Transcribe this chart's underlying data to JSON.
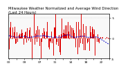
{
  "title": "Milwaukee Weather Normalized and Average Wind Direction (Last 24 Hours)",
  "bg_color": "#ffffff",
  "plot_bg_color": "#f8f8f8",
  "grid_color": "#aaaaaa",
  "bar_color": "#dd0000",
  "avg_line_color": "#0000cc",
  "y_min": -5,
  "y_max": 6,
  "ytick_vals": [
    -5,
    0,
    5
  ],
  "ytick_labels": [
    "-5",
    " 0",
    " 5"
  ],
  "title_fontsize": 3.8,
  "tick_fontsize": 3.2,
  "seed": 17
}
